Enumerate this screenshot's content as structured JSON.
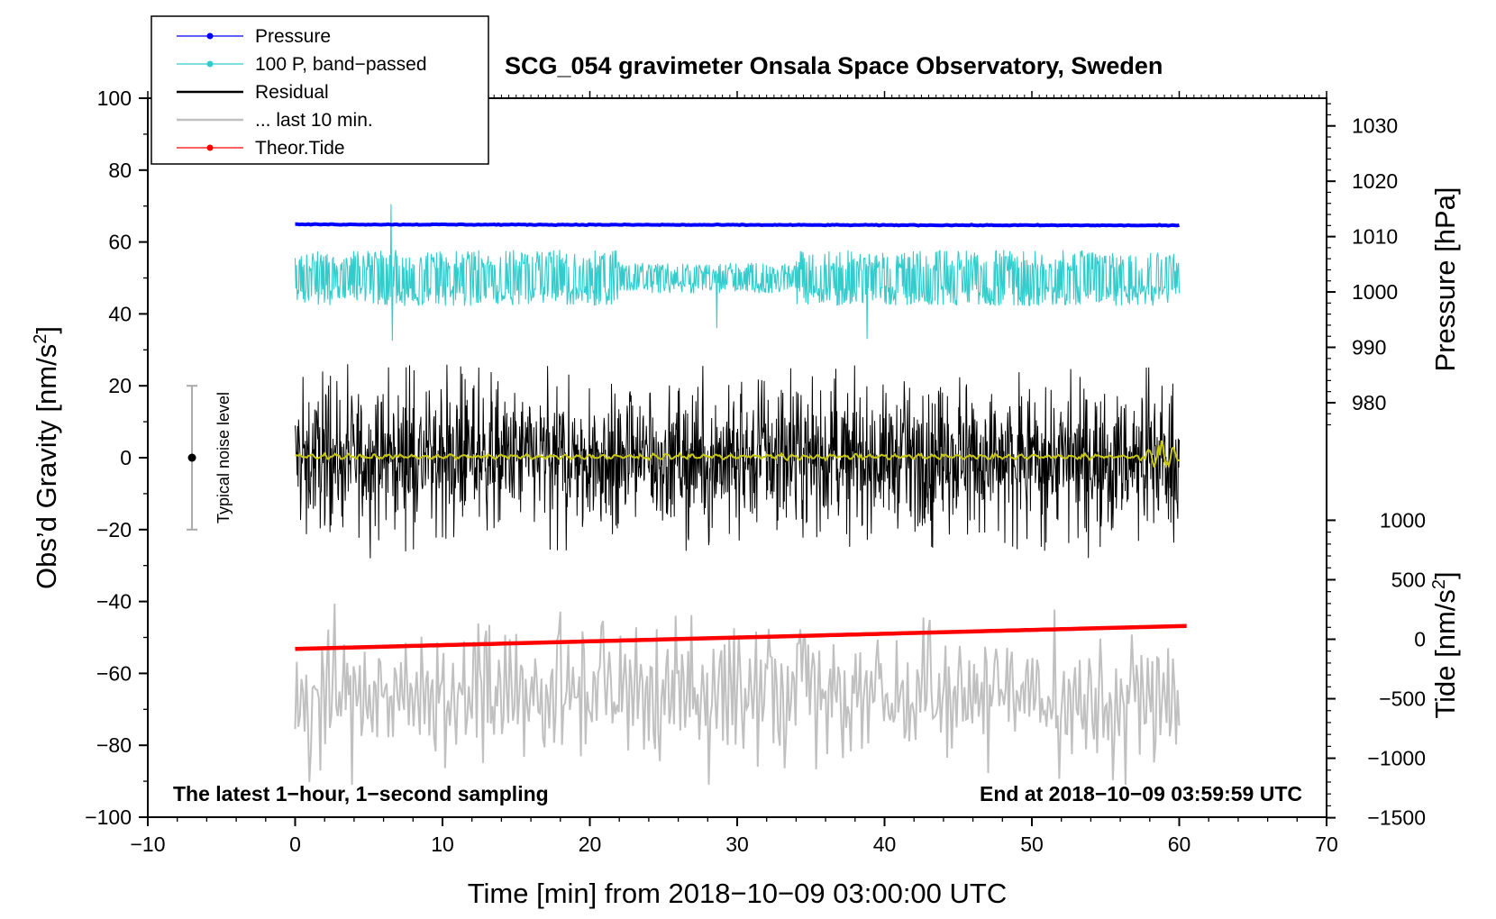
{
  "chart_data": {
    "type": "line",
    "title": "SCG_054 gravimeter Onsala Space Observatory, Sweden",
    "xlabel": "Time [min] from 2018−10−09 03:00:00 UTC",
    "ylabel_left": "Obs’d Gravity [nm/s",
    "ylabel_left_sup": "2",
    "ylabel_left_end": "]",
    "ylabel_right_top": "Pressure [hPa]",
    "ylabel_right_bottom": "Tide [nm/s",
    "ylabel_right_bottom_sup": "2",
    "ylabel_right_bottom_end": "]",
    "xlim": [
      -10,
      70
    ],
    "ylim": [
      -100,
      100
    ],
    "xticks": [
      "−10",
      "0",
      "10",
      "20",
      "30",
      "40",
      "50",
      "60",
      "70"
    ],
    "xtick_values": [
      -10,
      0,
      10,
      20,
      30,
      40,
      50,
      60,
      70
    ],
    "yticks": [
      "−100",
      "−80",
      "−60",
      "−40",
      "−20",
      "0",
      "20",
      "40",
      "60",
      "80",
      "100"
    ],
    "ytick_values": [
      -100,
      -80,
      -60,
      -40,
      -20,
      0,
      20,
      40,
      60,
      80,
      100
    ],
    "pressure_axis": {
      "ticks": [
        "980",
        "990",
        "1000",
        "1010",
        "1020",
        "1030"
      ],
      "tick_values": [
        980,
        990,
        1000,
        1010,
        1020,
        1030
      ],
      "gravity_at_1010": 61.5,
      "gravity_per_hpa": 1.54
    },
    "tide_axis": {
      "ticks": [
        "−1500",
        "−1000",
        "−500",
        "0",
        "500",
        "1000"
      ],
      "tick_values": [
        -1500,
        -1000,
        -500,
        0,
        500,
        1000
      ],
      "gravity_at_0": -50.5,
      "gravity_per_unit": 0.0331
    },
    "legend": [
      {
        "label": "Pressure",
        "color": "#0000ff",
        "marker": true
      },
      {
        "label": "100 P, band−passed",
        "color": "#33cccc",
        "marker": true
      },
      {
        "label": "Residual",
        "color": "#000000",
        "marker": false
      },
      {
        "label": "... last 10 min.",
        "color": "#c0c0c0",
        "marker": false
      },
      {
        "label": "Theor.Tide",
        "color": "#ff0000",
        "marker": true
      }
    ],
    "series": [
      {
        "name": "Pressure",
        "color": "#0000ff",
        "x_range": [
          0,
          60
        ],
        "start": 64.9,
        "end": 64.6,
        "amplitude": 0.3
      },
      {
        "name": "100 P, band−passed",
        "color": "#33cccc",
        "x_range": [
          0,
          60
        ],
        "center": 50,
        "amplitude": 6.5,
        "spikes": [
          {
            "x": 6.5,
            "y": 70.5
          },
          {
            "x": 6.6,
            "y": 32.5
          },
          {
            "x": 28.6,
            "y": 36
          },
          {
            "x": 38.8,
            "y": 33
          }
        ]
      },
      {
        "name": "Residual",
        "color": "#000000",
        "x_range": [
          0,
          60
        ],
        "center": 0,
        "amplitude": 16,
        "min": -30,
        "max": 27
      },
      {
        "name": "... last 10 min.",
        "color": "#c0c0c0",
        "x_range": [
          0,
          60
        ],
        "center": -66,
        "amplitude": 10,
        "min": -91,
        "max": -38
      },
      {
        "name": "Theor.Tide",
        "color": "#ff0000",
        "x_range": [
          0,
          60.5
        ],
        "start": -53.2,
        "end": -46.8
      },
      {
        "name": "Residual smoothed",
        "color": "#c8c810",
        "x_range": [
          0,
          60
        ],
        "center": 0.3,
        "amplitude": 0.7
      }
    ],
    "noise_level": {
      "label": "Typical noise level",
      "x": -7,
      "center": 0,
      "low": -20,
      "high": 20
    },
    "annotation_left": "The latest 1−hour, 1−second sampling",
    "annotation_right": "End at 2018−10−09 03:59:59 UTC"
  }
}
